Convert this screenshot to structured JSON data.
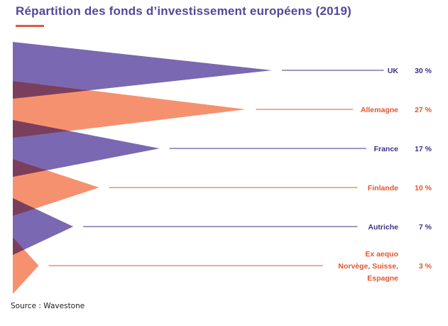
{
  "title": "Répartition des fonds d’investissement européens (2019)",
  "source": "Source : Wavestone",
  "colors": {
    "title": "#54479a",
    "accent": "#e05a3c",
    "purple": "#7a68b2",
    "salmon": "#f6916f",
    "purple_label": "#3d3387",
    "salmon_label": "#e4552f",
    "overlap": "#7b3f5e"
  },
  "chart_data": {
    "type": "bar",
    "title": "Répartition des fonds d’investissement européens (2019)",
    "categories": [
      "UK",
      "Allemagne",
      "France",
      "Finlande",
      "Autriche",
      "Ex aequo Norvège, Suisse, Espagne"
    ],
    "values": [
      30,
      27,
      17,
      10,
      7,
      3
    ],
    "value_labels": [
      "30 %",
      "27 %",
      "17 %",
      "10 %",
      "7 %",
      "3 %"
    ],
    "label_lines": [
      [
        "UK"
      ],
      [
        "Allemagne"
      ],
      [
        "France"
      ],
      [
        "Finlande"
      ],
      [
        "Autriche"
      ],
      [
        "Ex aequo",
        "Norvège, Suisse,",
        "Espagne"
      ]
    ],
    "series_colors": [
      "purple",
      "salmon",
      "purple",
      "salmon",
      "purple",
      "salmon"
    ],
    "unit": "%",
    "xlim": [
      0,
      30
    ],
    "grid": false,
    "legend": "none"
  }
}
